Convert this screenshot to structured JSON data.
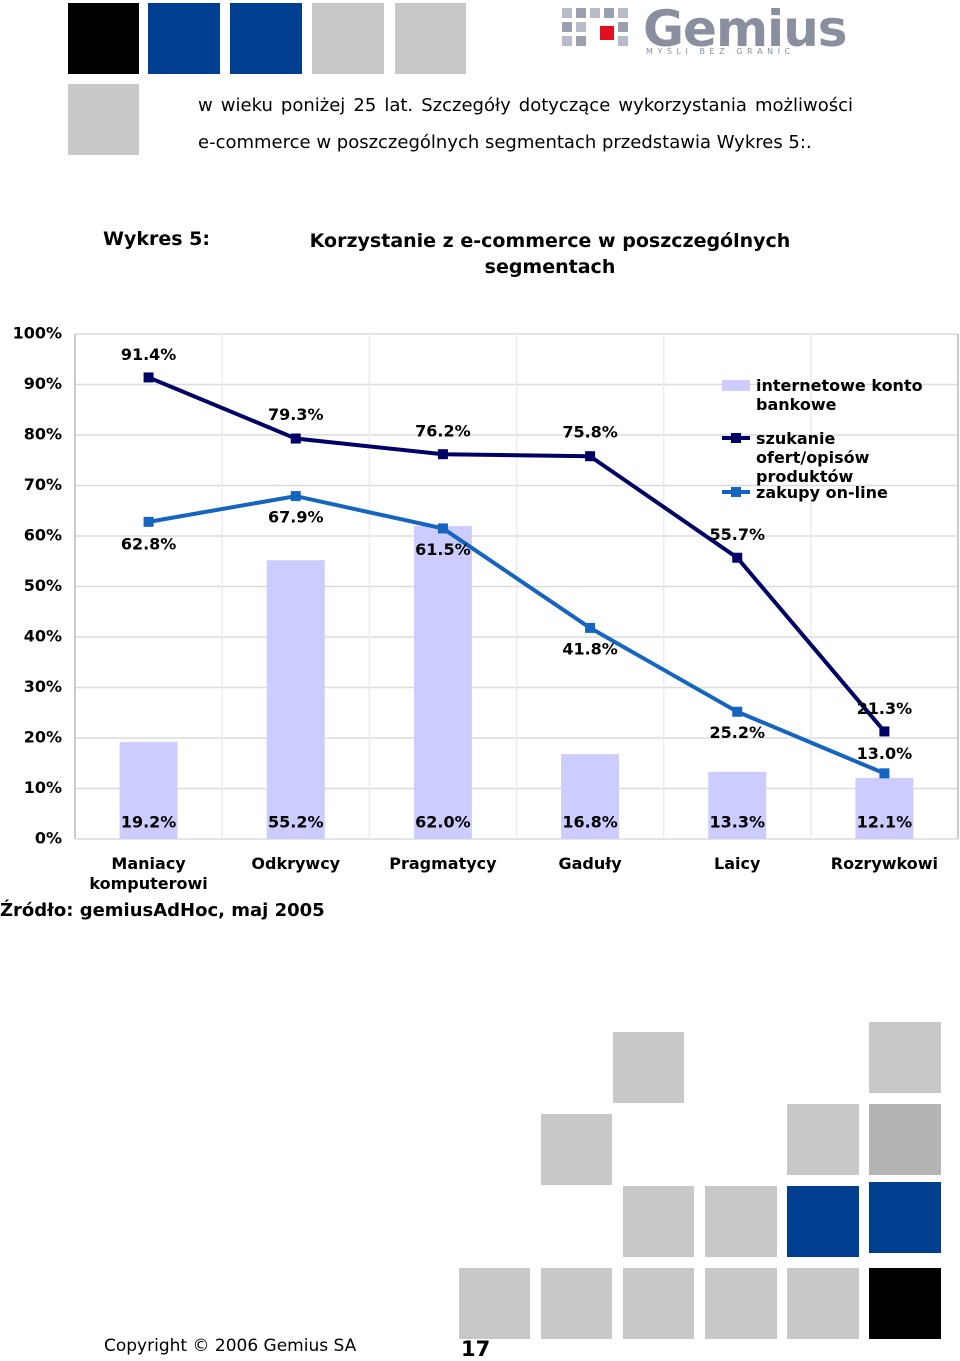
{
  "header": {
    "logo": "Gemius",
    "tagline": "M Y Ś L I   B E Z   G R A N I C"
  },
  "paragraph": "w wieku poniżej 25 lat. Szczegóły dotyczące wykorzystania możliwości e-commerce w poszczególnych segmentach przedstawia Wykres 5:.",
  "caption": {
    "label": "Wykres 5:",
    "title": "Korzystanie z e-commerce w poszczególnych segmentach"
  },
  "chart_data": {
    "type": "combo",
    "categories": [
      "Maniacy komputerowi",
      "Odkrywcy",
      "Pragmatycy",
      "Gaduły",
      "Laicy",
      "Rozrywkowi"
    ],
    "series": [
      {
        "name": "internetowe konto bankowe",
        "type": "bar",
        "color": "#ccccff",
        "values": [
          19.2,
          55.2,
          62.0,
          16.8,
          13.3,
          12.1
        ],
        "value_labels": [
          "19.2%",
          "55.2%",
          "62.0%",
          "16.8%",
          "13.3%",
          "12.1%"
        ]
      },
      {
        "name": "szukanie ofert/opisów produktów",
        "type": "line",
        "color": "#000066",
        "values": [
          91.4,
          79.3,
          76.2,
          75.8,
          55.7,
          21.3
        ],
        "value_labels": [
          "91.4%",
          "79.3%",
          "76.2%",
          "75.8%",
          "55.7%",
          "21.3%"
        ]
      },
      {
        "name": "zakupy on-line",
        "type": "line",
        "color": "#1565c0",
        "values": [
          62.8,
          67.9,
          61.5,
          41.8,
          25.2,
          13.0
        ],
        "value_labels": [
          "62.8%",
          "67.9%",
          "61.5%",
          "41.8%",
          "25.2%",
          "13.0%"
        ]
      }
    ],
    "ylim": [
      0,
      100
    ],
    "yticks": [
      {
        "value": 0,
        "label": "0%"
      },
      {
        "value": 10,
        "label": "10%"
      },
      {
        "value": 20,
        "label": "20%"
      },
      {
        "value": 30,
        "label": "30%"
      },
      {
        "value": 40,
        "label": "40%"
      },
      {
        "value": 50,
        "label": "50%"
      },
      {
        "value": 60,
        "label": "60%"
      },
      {
        "value": 70,
        "label": "70%"
      },
      {
        "value": 80,
        "label": "80%"
      },
      {
        "value": 90,
        "label": "90%"
      },
      {
        "value": 100,
        "label": "100%"
      }
    ],
    "grid": true,
    "legend": "right"
  },
  "source": "Źródło: gemiusAdHoc, maj 2005",
  "footer": {
    "copyright": "Copyright © 2006 Gemius SA",
    "page": "17"
  }
}
